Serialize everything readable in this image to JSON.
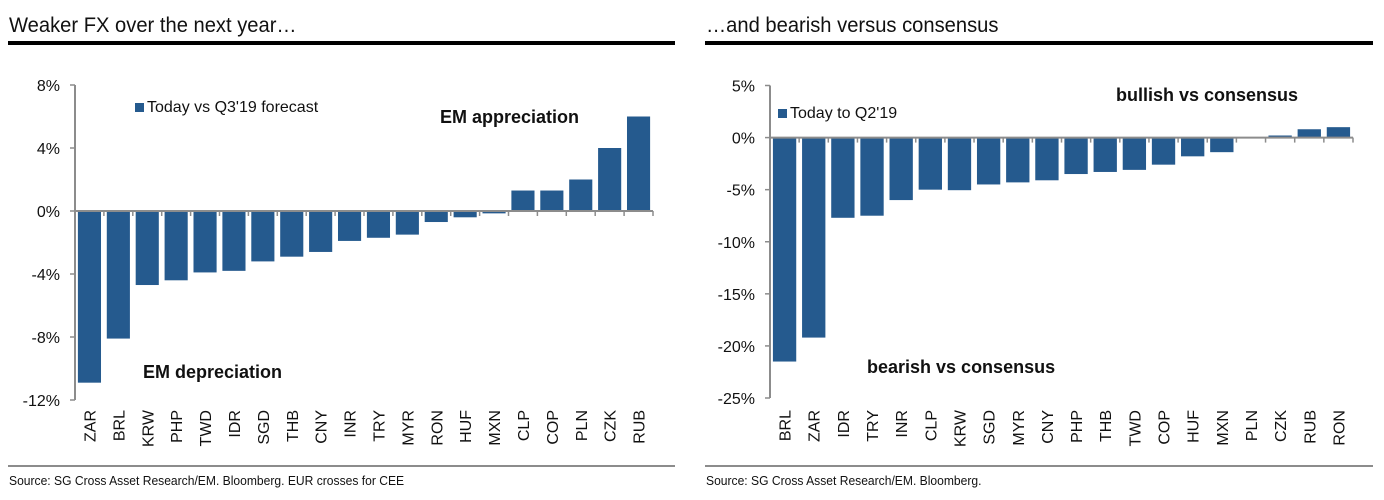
{
  "colors": {
    "bar": "#255a8e",
    "axis": "#8c8c8c",
    "text": "#111111"
  },
  "chart_data": [
    {
      "type": "bar",
      "title": "Weaker FX over the next year…",
      "legend": "Today vs Q3'19 forecast",
      "legend_position": "top-left",
      "annotations": [
        "EM appreciation",
        "EM depreciation"
      ],
      "source": "Source: SG Cross Asset Research/EM. Bloomberg. EUR crosses for CEE",
      "xlabel": "",
      "ylabel": "",
      "ylim": [
        -12,
        8
      ],
      "yticks": [
        8,
        4,
        0,
        -4,
        -8,
        -12
      ],
      "ytick_labels": [
        "8%",
        "4%",
        "0%",
        "-4%",
        "-8%",
        "-12%"
      ],
      "categories": [
        "ZAR",
        "BRL",
        "KRW",
        "PHP",
        "TWD",
        "IDR",
        "SGD",
        "THB",
        "CNY",
        "INR",
        "TRY",
        "MYR",
        "RON",
        "HUF",
        "MXN",
        "CLP",
        "COP",
        "PLN",
        "CZK",
        "RUB"
      ],
      "series": [
        {
          "name": "Today vs Q3'19 forecast",
          "values": [
            -10.9,
            -8.1,
            -4.7,
            -4.4,
            -3.9,
            -3.8,
            -3.2,
            -2.9,
            -2.6,
            -1.9,
            -1.7,
            -1.5,
            -0.7,
            -0.4,
            -0.15,
            1.3,
            1.3,
            2.0,
            4.0,
            6.0
          ]
        }
      ],
      "grid": false
    },
    {
      "type": "bar",
      "title": "…and bearish versus consensus",
      "legend": "Today to Q2'19",
      "legend_position": "top-left",
      "annotations": [
        "bullish vs consensus",
        "bearish vs consensus"
      ],
      "source": "Source: SG Cross Asset Research/EM. Bloomberg.",
      "xlabel": "",
      "ylabel": "",
      "ylim": [
        -25,
        5
      ],
      "yticks": [
        5,
        0,
        -5,
        -10,
        -15,
        -20,
        -25
      ],
      "ytick_labels": [
        "5%",
        "0%",
        "-5%",
        "-10%",
        "-15%",
        "-20%",
        "-25%"
      ],
      "categories": [
        "BRL",
        "ZAR",
        "IDR",
        "TRY",
        "INR",
        "CLP",
        "KRW",
        "SGD",
        "MYR",
        "CNY",
        "PHP",
        "THB",
        "TWD",
        "COP",
        "HUF",
        "MXN",
        "PLN",
        "CZK",
        "RUB",
        "RON"
      ],
      "series": [
        {
          "name": "Today to Q2'19",
          "values": [
            -21.5,
            -19.2,
            -7.7,
            -7.5,
            -6.0,
            -5.0,
            -5.05,
            -4.5,
            -4.3,
            -4.1,
            -3.5,
            -3.3,
            -3.1,
            -2.6,
            -1.8,
            -1.4,
            0.0,
            0.2,
            0.8,
            1.0
          ]
        }
      ],
      "grid": false
    }
  ]
}
